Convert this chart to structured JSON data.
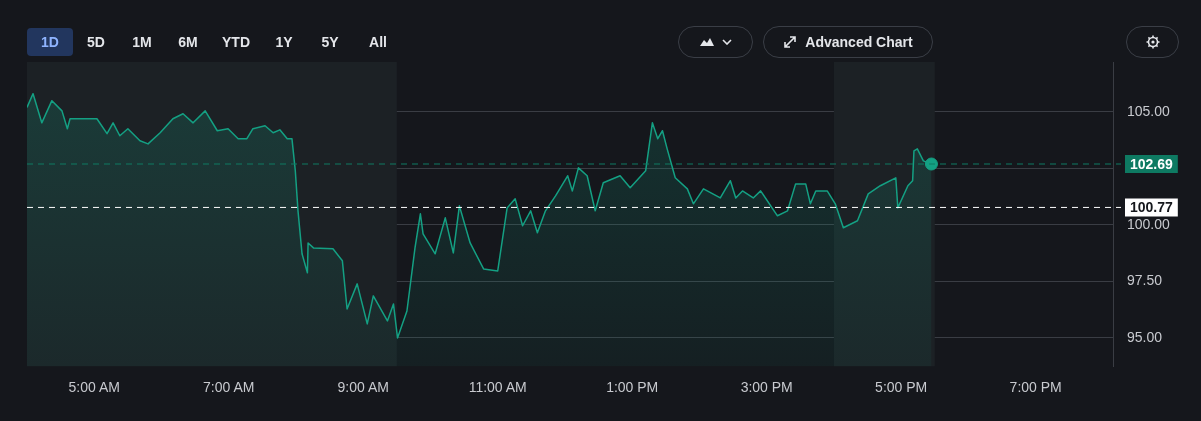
{
  "chart_data": {
    "type": "area",
    "grid": "y",
    "legend": false,
    "marker": "none",
    "xlim": [
      4,
      20.15
    ],
    "ylim": [
      93.75,
      107.2
    ],
    "xticks": [
      {
        "value": 5,
        "label": "5:00 AM"
      },
      {
        "value": 7,
        "label": "7:00 AM"
      },
      {
        "value": 9,
        "label": "9:00 AM"
      },
      {
        "value": 11,
        "label": "11:00 AM"
      },
      {
        "value": 13,
        "label": "1:00 PM"
      },
      {
        "value": 15,
        "label": "3:00 PM"
      },
      {
        "value": 17,
        "label": "5:00 PM"
      },
      {
        "value": 19,
        "label": "7:00 PM"
      }
    ],
    "yticks": [
      {
        "value": 95,
        "label": "95.00"
      },
      {
        "value": 97.5,
        "label": "97.50"
      },
      {
        "value": 100,
        "label": "100.00"
      },
      {
        "value": 102.5,
        "label": null
      },
      {
        "value": 105,
        "label": "105.00"
      }
    ],
    "series": [
      {
        "color": "#14a083",
        "x": [
          4.0,
          4.09,
          4.22,
          4.37,
          4.52,
          4.6,
          4.64,
          5.04,
          5.19,
          5.28,
          5.38,
          5.5,
          5.68,
          5.8,
          5.98,
          6.17,
          6.32,
          6.47,
          6.65,
          6.83,
          6.99,
          7.14,
          7.27,
          7.36,
          7.54,
          7.66,
          7.76,
          7.87,
          7.94,
          7.99,
          8.03,
          8.09,
          8.17,
          8.18,
          8.26,
          8.55,
          8.69,
          8.76,
          8.91,
          9.06,
          9.15,
          9.36,
          9.45,
          9.51,
          9.65,
          9.77,
          9.85,
          9.89,
          10.07,
          10.22,
          10.34,
          10.43,
          10.59,
          10.79,
          11.0,
          11.14,
          11.26,
          11.37,
          11.49,
          11.59,
          11.71,
          11.86,
          12.04,
          12.11,
          12.2,
          12.33,
          12.45,
          12.57,
          12.82,
          12.97,
          13.2,
          13.3,
          13.38,
          13.45,
          13.52,
          13.64,
          13.82,
          13.91,
          14.06,
          14.31,
          14.46,
          14.54,
          14.64,
          14.8,
          14.91,
          15.16,
          15.31,
          15.43,
          15.58,
          15.65,
          15.73,
          15.9,
          16.02,
          16.14,
          16.35,
          16.51,
          16.69,
          16.92,
          16.95,
          17.1,
          17.17,
          17.19,
          17.24,
          17.33,
          17.45
        ],
        "values": [
          105.19,
          105.8,
          104.51,
          105.49,
          105.04,
          104.25,
          104.69,
          104.69,
          104.03,
          104.51,
          103.94,
          104.25,
          103.72,
          103.58,
          104.07,
          104.69,
          104.91,
          104.51,
          105.04,
          104.16,
          104.25,
          103.81,
          103.81,
          104.25,
          104.38,
          104.07,
          104.2,
          103.81,
          103.81,
          102.39,
          100.62,
          98.72,
          97.88,
          99.2,
          98.98,
          98.94,
          98.41,
          96.28,
          97.39,
          95.62,
          96.86,
          95.75,
          96.5,
          95.0,
          96.19,
          98.98,
          100.49,
          99.6,
          98.72,
          100.31,
          98.76,
          100.84,
          99.2,
          98.05,
          97.96,
          100.75,
          101.15,
          99.96,
          100.62,
          99.65,
          100.62,
          101.28,
          102.17,
          101.5,
          102.52,
          102.17,
          100.62,
          101.86,
          102.17,
          101.64,
          102.39,
          104.51,
          103.81,
          104.16,
          103.36,
          102.08,
          101.59,
          100.93,
          101.59,
          101.19,
          101.95,
          101.19,
          101.5,
          101.19,
          101.5,
          100.4,
          100.62,
          101.81,
          101.81,
          100.93,
          101.5,
          101.5,
          100.93,
          99.87,
          100.18,
          101.37,
          101.73,
          102.08,
          100.75,
          101.73,
          101.95,
          103.27,
          103.36,
          102.83,
          102.69
        ]
      },
      {
        "type": "scatter",
        "color": "#14a083",
        "marker": "circle",
        "x": [
          17.45
        ],
        "values": [
          102.69
        ]
      }
    ],
    "ref_lines": [
      {
        "axis": "y",
        "value": 102.69,
        "label": "102.69",
        "color": "#0e7a62",
        "line_style": "dashed"
      },
      {
        "axis": "y",
        "value": 100.77,
        "label": "100.77",
        "color": "#ffffff",
        "line_style": "dashed"
      }
    ],
    "bands": [
      {
        "axis": "x",
        "from": 4,
        "to": 9.5,
        "color": "#1c2125"
      },
      {
        "axis": "x",
        "from": 16,
        "to": 17.5,
        "color": "#1c2125"
      }
    ],
    "annotations": [
      "1D",
      "5D",
      "1M",
      "6M",
      "YTD",
      "1Y",
      "5Y",
      "All",
      "Advanced Chart"
    ]
  }
}
